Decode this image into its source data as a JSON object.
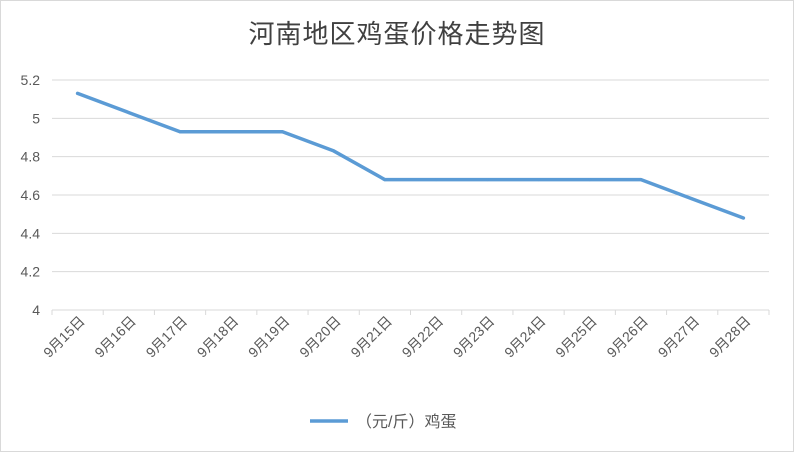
{
  "chart_data": {
    "type": "line",
    "title": "河南地区鸡蛋价格走势图",
    "xlabel": "",
    "ylabel": "",
    "categories": [
      "9月15日",
      "9月16日",
      "9月17日",
      "9月18日",
      "9月19日",
      "9月20日",
      "9月21日",
      "9月22日",
      "9月23日",
      "9月24日",
      "9月25日",
      "9月26日",
      "9月27日",
      "9月28日"
    ],
    "series": [
      {
        "name": "（元/斤）鸡蛋",
        "values": [
          5.13,
          5.03,
          4.93,
          4.93,
          4.93,
          4.83,
          4.68,
          4.68,
          4.68,
          4.68,
          4.68,
          4.68,
          4.58,
          4.48
        ],
        "color": "#5b9bd5"
      }
    ],
    "yticks": [
      "4",
      "4.2",
      "4.4",
      "4.6",
      "4.8",
      "5",
      "5.2"
    ],
    "ylim": [
      4,
      5.2
    ],
    "grid": true,
    "legend_position": "bottom"
  }
}
